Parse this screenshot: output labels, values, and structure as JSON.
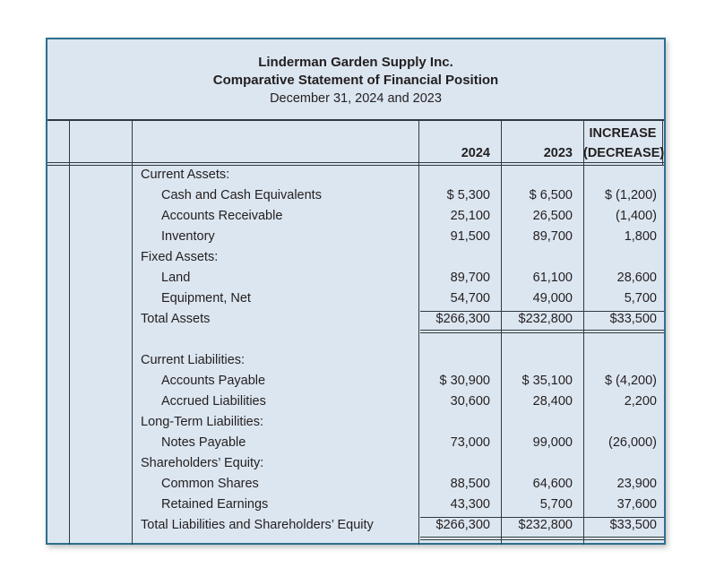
{
  "header": {
    "company": "Linderman Garden Supply Inc.",
    "statement": "Comparative Statement of Financial Position",
    "date": "December 31, 2024 and 2023"
  },
  "columns": {
    "year1": "2024",
    "year2": "2023",
    "change_line1": "INCREASE",
    "change_line2": "(DECREASE)"
  },
  "rows": [
    {
      "label": "Current Assets:",
      "indent": 0,
      "v2024": "",
      "v2023": "",
      "change": ""
    },
    {
      "label": "Cash and Cash Equivalents",
      "indent": 1,
      "v2024": "$  5,300",
      "v2023": "$  6,500",
      "change": "$ (1,200)"
    },
    {
      "label": "Accounts Receivable",
      "indent": 1,
      "v2024": "25,100",
      "v2023": "26,500",
      "change": "(1,400)"
    },
    {
      "label": "Inventory",
      "indent": 1,
      "v2024": "91,500",
      "v2023": "89,700",
      "change": "1,800"
    },
    {
      "label": "Fixed Assets:",
      "indent": 0,
      "v2024": "",
      "v2023": "",
      "change": ""
    },
    {
      "label": "Land",
      "indent": 1,
      "v2024": "89,700",
      "v2023": "61,100",
      "change": "28,600"
    },
    {
      "label": "Equipment, Net",
      "indent": 1,
      "v2024": "54,700",
      "v2023": "49,000",
      "change": "5,700"
    },
    {
      "label": "Total Assets",
      "indent": 0,
      "v2024": "$266,300",
      "v2023": "$232,800",
      "change": "$33,500"
    },
    {
      "label": "",
      "indent": 0,
      "v2024": "",
      "v2023": "",
      "change": ""
    },
    {
      "label": "Current Liabilities:",
      "indent": 0,
      "v2024": "",
      "v2023": "",
      "change": ""
    },
    {
      "label": "Accounts Payable",
      "indent": 1,
      "v2024": "$ 30,900",
      "v2023": "$ 35,100",
      "change": "$ (4,200)"
    },
    {
      "label": "Accrued Liabilities",
      "indent": 1,
      "v2024": "30,600",
      "v2023": "28,400",
      "change": "2,200"
    },
    {
      "label": "Long-Term Liabilities:",
      "indent": 0,
      "v2024": "",
      "v2023": "",
      "change": ""
    },
    {
      "label": "Notes Payable",
      "indent": 1,
      "v2024": "73,000",
      "v2023": "99,000",
      "change": "(26,000)"
    },
    {
      "label": "Shareholders’ Equity:",
      "indent": 0,
      "v2024": "",
      "v2023": "",
      "change": ""
    },
    {
      "label": "Common Shares",
      "indent": 1,
      "v2024": "88,500",
      "v2023": "64,600",
      "change": "23,900"
    },
    {
      "label": "Retained Earnings",
      "indent": 1,
      "v2024": "43,300",
      "v2023": "5,700",
      "change": "37,600"
    },
    {
      "label": "Total Liabilities and Shareholders’ Equity",
      "indent": 0,
      "v2024": "$266,300",
      "v2023": "$232,800",
      "change": "$33,500"
    }
  ]
}
